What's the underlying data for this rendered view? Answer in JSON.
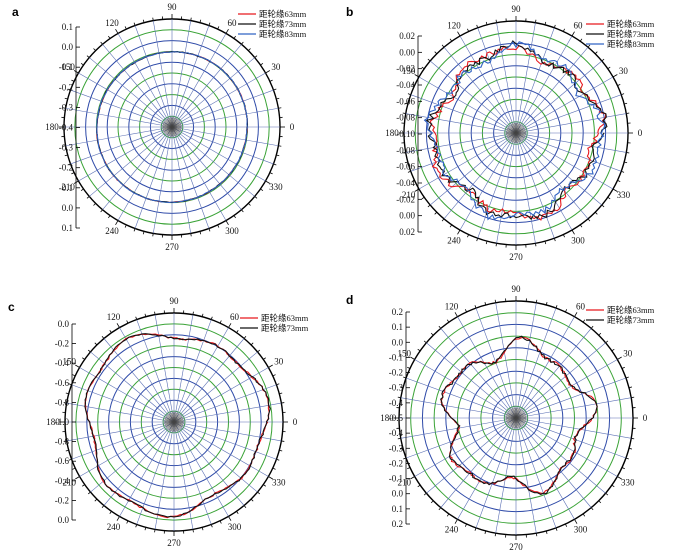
{
  "chart_data": [
    {
      "type": "polar-line",
      "label": "a",
      "angle_ticks": [
        "0",
        "30",
        "60",
        "90",
        "120",
        "150",
        "180",
        "210",
        "240",
        "270",
        "300",
        "330"
      ],
      "radial_tick_labels": [
        "0.1",
        "0.0",
        "-0.1",
        "-0.2",
        "-0.3",
        "-0.4",
        "-0.3",
        "-0.2",
        "-0.1",
        "0.0",
        "0.1"
      ],
      "rlim": [
        -0.4,
        0.1
      ],
      "legend_position": "top-right",
      "series": [
        {
          "name": "距轮缘63mm",
          "color": "#e8191e",
          "base_r": 0.0,
          "wobble": 0.006,
          "phase": 0.3
        },
        {
          "name": "距轮缘73mm",
          "color": "#111111",
          "base_r": 0.0,
          "wobble": 0.005,
          "phase": 1.1
        },
        {
          "name": "距轮缘83mm",
          "color": "#3163c4",
          "base_r": 0.0,
          "wobble": 0.006,
          "phase": 2.2
        }
      ]
    },
    {
      "type": "polar-line",
      "label": "b",
      "angle_ticks": [
        "0",
        "30",
        "60",
        "90",
        "120",
        "150",
        "180",
        "210",
        "240",
        "270",
        "300",
        "330"
      ],
      "radial_tick_labels": [
        "0.02",
        "0.00",
        "-0.02",
        "-0.04",
        "-0.06",
        "-0.08",
        "-0.10",
        "-0.08",
        "-0.06",
        "-0.04",
        "-0.02",
        "0.00",
        "0.02"
      ],
      "rlim": [
        -0.1,
        0.02
      ],
      "legend_position": "top-right",
      "series": [
        {
          "name": "距轮缘63mm",
          "color": "#e8191e",
          "base_r": 0.0,
          "wobble": 0.01,
          "phase": 0.4
        },
        {
          "name": "距轮缘73mm",
          "color": "#111111",
          "base_r": 0.0,
          "wobble": 0.01,
          "phase": 1.2
        },
        {
          "name": "距轮缘83mm",
          "color": "#3163c4",
          "base_r": -0.003,
          "wobble": 0.01,
          "phase": 2.0
        }
      ]
    },
    {
      "type": "polar-line",
      "label": "c",
      "angle_ticks": [
        "0",
        "30",
        "60",
        "90",
        "120",
        "150",
        "180",
        "210",
        "240",
        "270",
        "300",
        "330"
      ],
      "radial_tick_labels": [
        "0.0",
        "-0.2",
        "-0.4",
        "-0.6",
        "-0.8",
        "-1.0",
        "-0.8",
        "-0.6",
        "-0.4",
        "-0.2",
        "0.0"
      ],
      "rlim": [
        -1.0,
        0.0
      ],
      "legend_position": "top-right",
      "series": [
        {
          "name": "距轮缘63mm",
          "color": "#e8191e",
          "base_r": -0.04,
          "wobble": 0.03,
          "phase": 0.7
        },
        {
          "name": "距轮缘73mm",
          "color": "#111111",
          "base_r": -0.04,
          "wobble": 0.03,
          "phase": 1.9
        }
      ]
    },
    {
      "type": "polar-line",
      "label": "d",
      "angle_ticks": [
        "0",
        "30",
        "60",
        "90",
        "120",
        "150",
        "180",
        "210",
        "240",
        "270",
        "300",
        "330"
      ],
      "radial_tick_labels": [
        "0.2",
        "0.1",
        "0.0",
        "-0.1",
        "-0.2",
        "-0.3",
        "-0.4",
        "-0.5",
        "-0.4",
        "-0.3",
        "-0.2",
        "-0.1",
        "0.0",
        "0.1",
        "0.2"
      ],
      "rlim": [
        -0.5,
        0.2
      ],
      "legend_position": "top-right",
      "series": [
        {
          "name": "距轮缘63mm",
          "color": "#e8191e",
          "base_r": -0.03,
          "wobble": 0.045,
          "phase": 0.5
        },
        {
          "name": "距轮缘73mm",
          "color": "#111111",
          "base_r": -0.03,
          "wobble": 0.04,
          "phase": 1.6
        }
      ]
    }
  ]
}
